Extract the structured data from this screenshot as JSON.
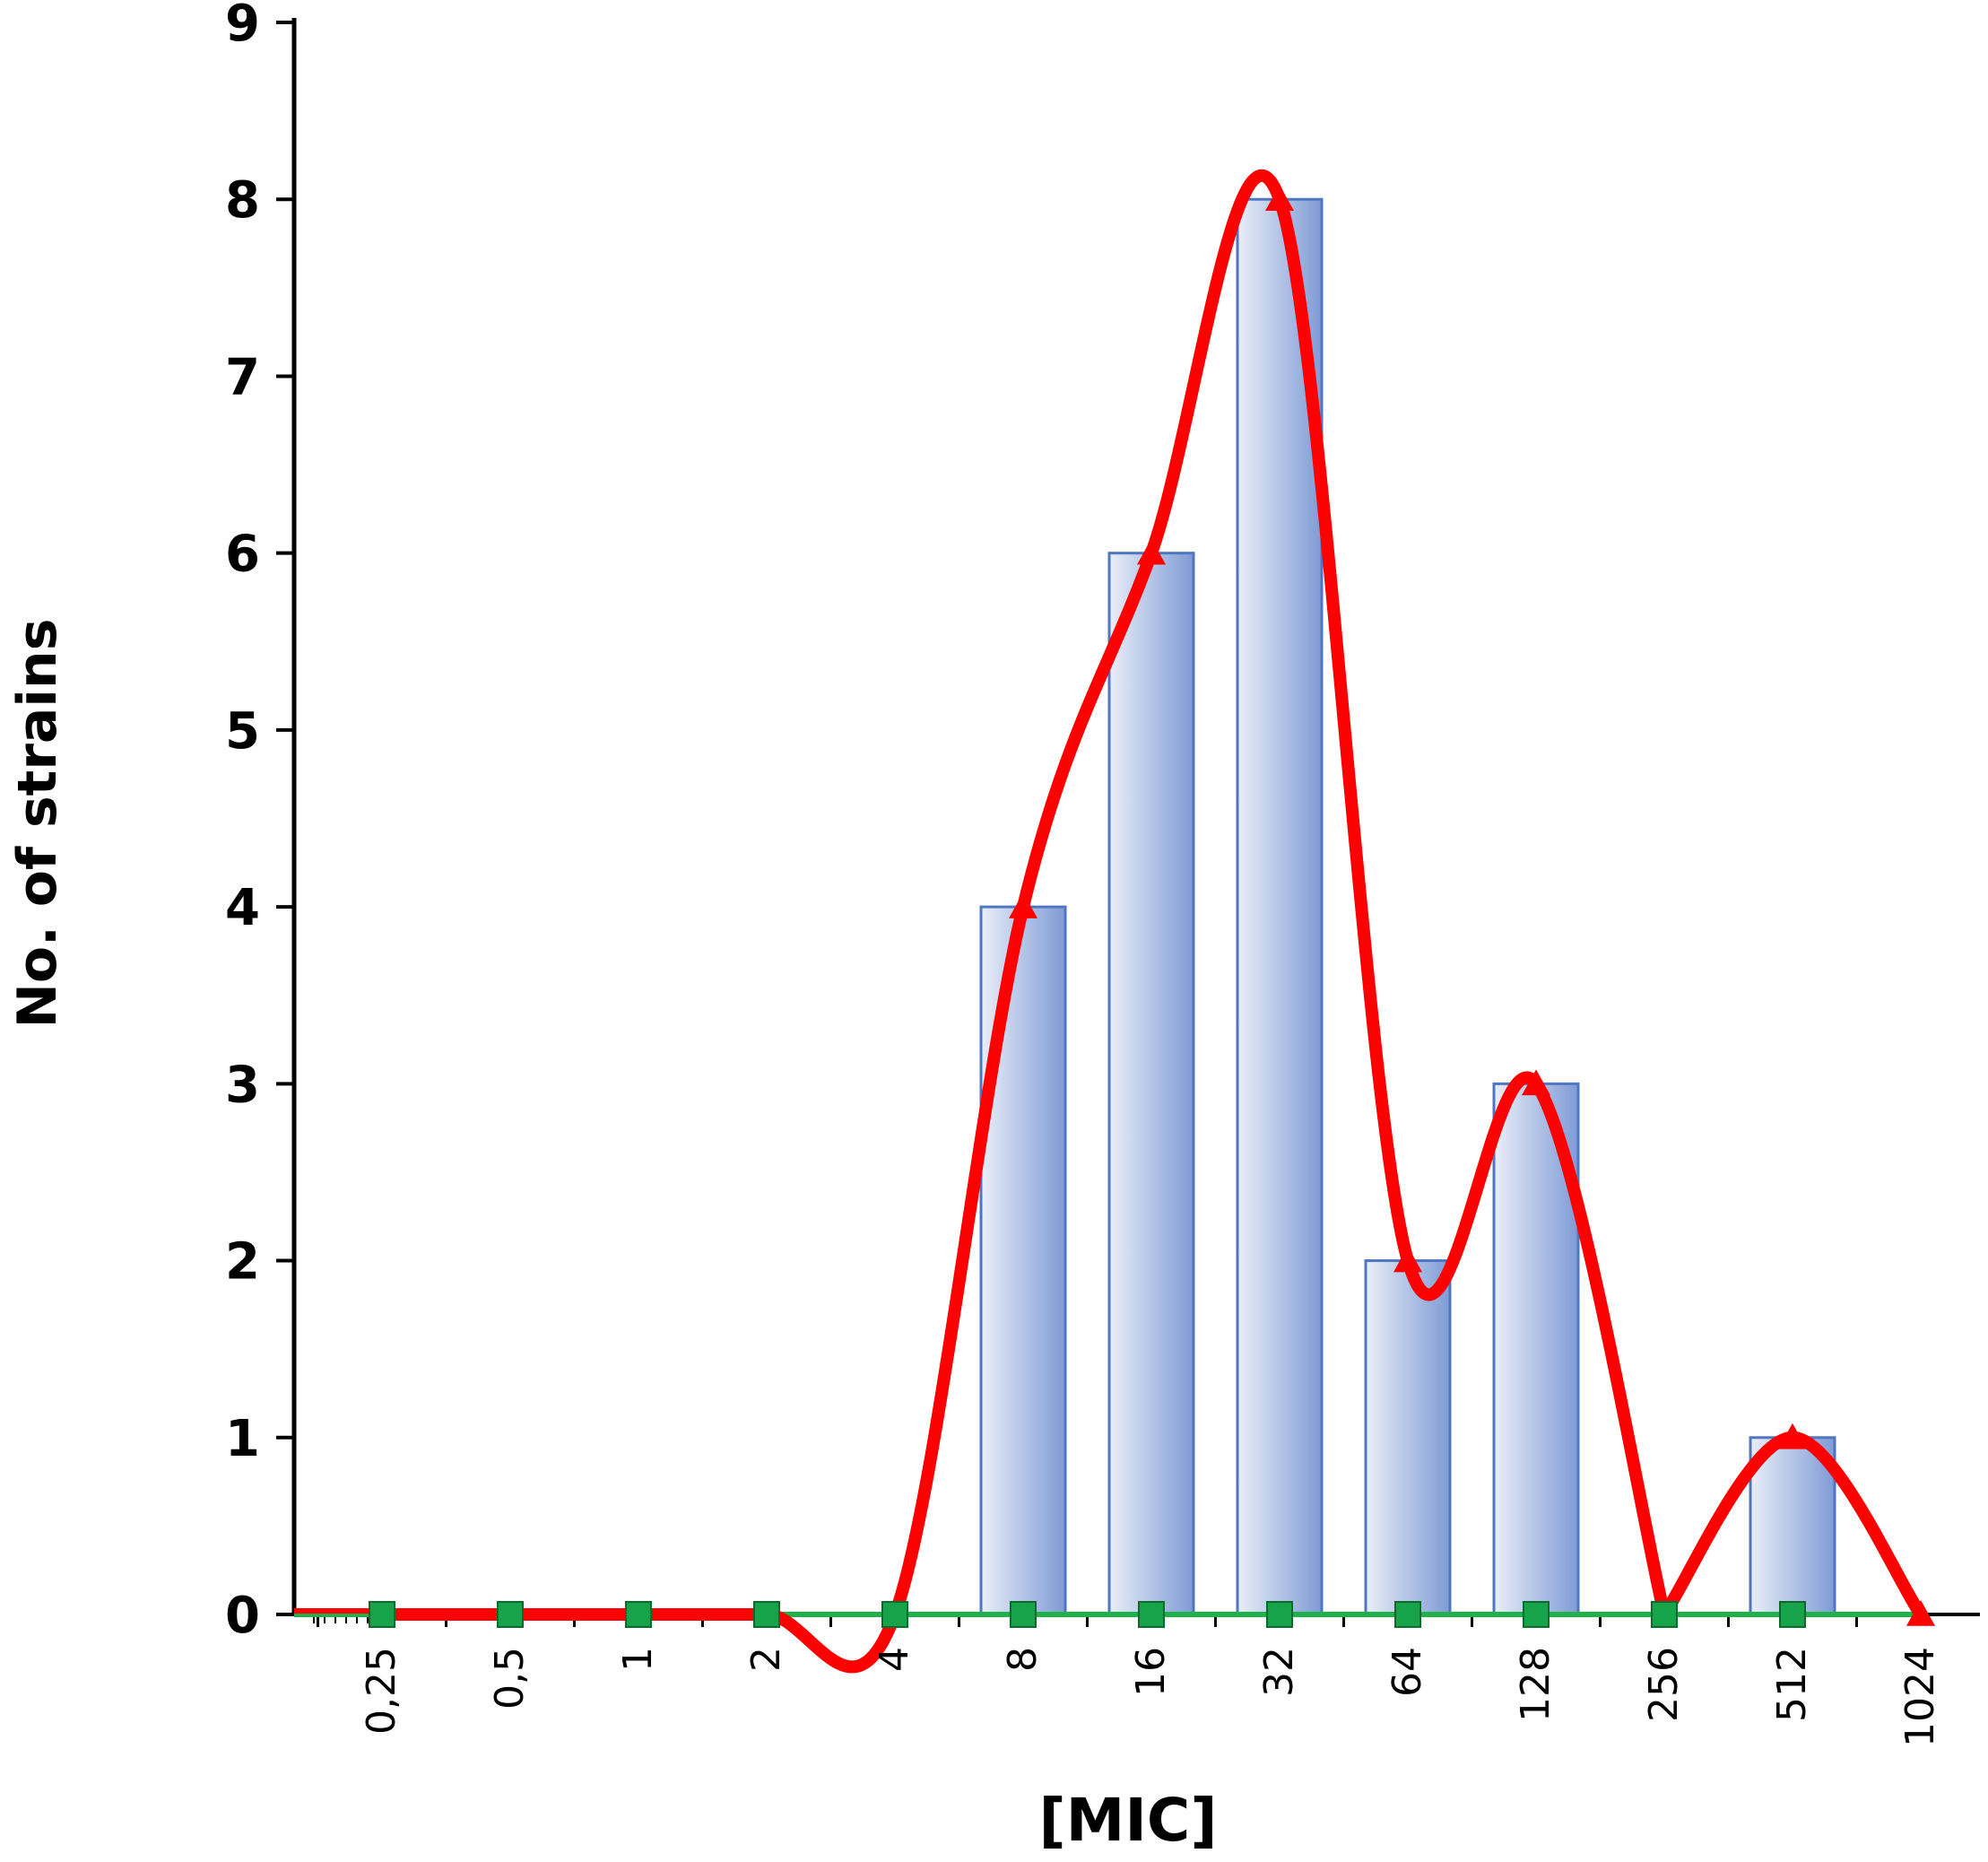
{
  "chart_data": {
    "type": "bar",
    "categories": [
      "0,25",
      "0,5",
      "1",
      "2",
      "4",
      "8",
      "16",
      "32",
      "64",
      "128",
      "256",
      "512",
      "1024"
    ],
    "series": [
      {
        "type": "bar",
        "values": [
          0,
          0,
          0,
          0,
          0,
          4,
          6,
          8,
          2,
          3,
          0,
          1,
          0
        ]
      },
      {
        "type": "line",
        "smooth": true,
        "marker": "triangle",
        "values": [
          0,
          0,
          0,
          0,
          0,
          4,
          6,
          8,
          2,
          3,
          0,
          1,
          0
        ]
      },
      {
        "type": "line",
        "marker": "square",
        "values": [
          0,
          0,
          0,
          0,
          0,
          0,
          0,
          0,
          0,
          0,
          0,
          0,
          0
        ]
      }
    ],
    "title": "",
    "xlabel": "[MIC]",
    "ylabel": "No. of strains",
    "ylim": [
      0,
      9
    ],
    "yticks": [
      "0",
      "1",
      "2",
      "3",
      "4",
      "5",
      "6",
      "7",
      "8",
      "9"
    ],
    "grid": false,
    "legend": "none",
    "colors": {
      "bar_fill_light": "#e9eef8",
      "bar_fill_dark": "#7f9bd6",
      "bar_stroke": "#4f76c0",
      "curve": "#ff0000",
      "baseline_line": "#1db34a",
      "square_marker": "#16a34a",
      "square_stroke": "#0b6b2c",
      "axis": "#000000"
    }
  }
}
